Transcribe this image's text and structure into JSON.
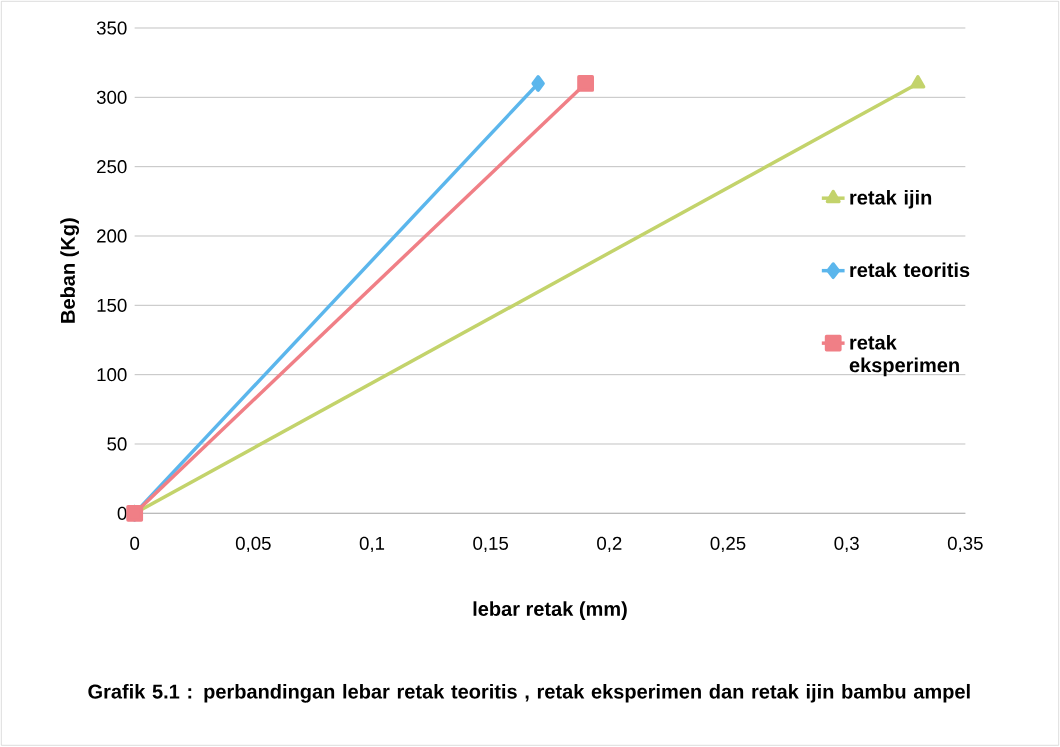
{
  "chart_data": {
    "type": "line",
    "title": "Grafik 5.1 : perbandingan  lebar retak teoritis , retak eksperimen dan retak ijin bambu ampel",
    "xlabel": "lebar retak (mm)",
    "ylabel": "Beban (Kg)",
    "series": [
      {
        "name": "retak ijin",
        "color": "#c3d36b",
        "marker": "triangle",
        "x": [
          0,
          0.33
        ],
        "values": [
          0,
          310
        ]
      },
      {
        "name": "retak teoritis",
        "color": "#5bb6ec",
        "marker": "diamond",
        "x": [
          0,
          0.17
        ],
        "values": [
          0,
          310
        ]
      },
      {
        "name": "retak eksperimen",
        "color": "#f07f86",
        "marker": "square",
        "x": [
          0,
          0.19
        ],
        "values": [
          0,
          310
        ]
      }
    ],
    "xlim": [
      0,
      0.35
    ],
    "ylim": [
      0,
      350
    ],
    "xticks": [
      0,
      {
        "value": 0.05,
        "label": "0,05"
      },
      {
        "value": 0.1,
        "label": "0,1"
      },
      {
        "value": 0.15,
        "label": "0,15"
      },
      {
        "value": 0.2,
        "label": "0,2"
      },
      {
        "value": 0.25,
        "label": "0,25"
      },
      {
        "value": 0.3,
        "label": "0,3"
      },
      {
        "value": 0.35,
        "label": "0,35"
      }
    ],
    "yticks": [
      0,
      50,
      100,
      150,
      200,
      250,
      300,
      350
    ],
    "grid": "y",
    "legend": "right"
  }
}
